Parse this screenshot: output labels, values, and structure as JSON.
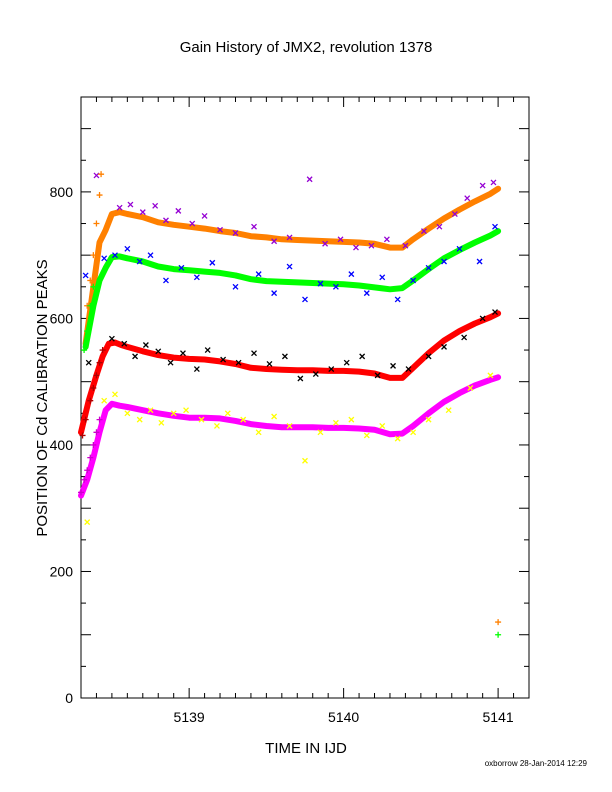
{
  "chart_data": {
    "type": "scatter",
    "title": "Gain History of JMX2, revolution 1378",
    "xlabel": "TIME IN IJD",
    "ylabel": "POSITION OF Cd CALIBRATION PEAKS",
    "xlim": [
      5138.3,
      5141.2
    ],
    "ylim": [
      0,
      950
    ],
    "x_ticks": [
      5139,
      5140,
      5141
    ],
    "x_tick_labels": [
      "5139",
      "5140",
      "5141"
    ],
    "y_ticks": [
      0,
      200,
      400,
      600,
      800
    ],
    "y_tick_labels": [
      "0",
      "200",
      "400",
      "600",
      "800"
    ],
    "grid": false,
    "footer": "oxborrow 28-Jan-2014 12:29",
    "series": [
      {
        "color": "#ff8000",
        "marker": "line",
        "x": [
          5138.33,
          5138.38,
          5138.42,
          5138.46,
          5138.5,
          5138.55,
          5138.6,
          5138.7,
          5138.8,
          5138.9,
          5139.0,
          5139.1,
          5139.2,
          5139.3,
          5139.4,
          5139.5,
          5139.6,
          5139.7,
          5139.8,
          5139.9,
          5140.0,
          5140.1,
          5140.2,
          5140.3,
          5140.38,
          5140.45,
          5140.55,
          5140.65,
          5140.75,
          5140.85,
          5140.95,
          5141.0
        ],
        "y": [
          560,
          650,
          720,
          740,
          765,
          768,
          765,
          760,
          752,
          748,
          745,
          742,
          738,
          735,
          730,
          728,
          725,
          724,
          723,
          722,
          721,
          720,
          718,
          712,
          712,
          725,
          742,
          758,
          772,
          785,
          797,
          805
        ]
      },
      {
        "color": "#00ff00",
        "marker": "line",
        "x": [
          5138.33,
          5138.38,
          5138.42,
          5138.46,
          5138.5,
          5138.55,
          5138.6,
          5138.7,
          5138.8,
          5138.9,
          5139.0,
          5139.1,
          5139.2,
          5139.3,
          5139.4,
          5139.5,
          5139.6,
          5139.7,
          5139.8,
          5139.9,
          5140.0,
          5140.1,
          5140.2,
          5140.3,
          5140.38,
          5140.45,
          5140.55,
          5140.65,
          5140.75,
          5140.85,
          5140.95,
          5141.0
        ],
        "y": [
          555,
          620,
          660,
          680,
          697,
          698,
          695,
          690,
          682,
          678,
          676,
          674,
          672,
          668,
          662,
          659,
          658,
          657,
          656,
          655,
          654,
          652,
          649,
          646,
          648,
          660,
          678,
          695,
          708,
          720,
          731,
          738
        ]
      },
      {
        "color": "#ff0000",
        "marker": "line",
        "x": [
          5138.3,
          5138.35,
          5138.4,
          5138.44,
          5138.48,
          5138.52,
          5138.56,
          5138.6,
          5138.7,
          5138.8,
          5138.9,
          5139.0,
          5139.1,
          5139.2,
          5139.3,
          5139.4,
          5139.5,
          5139.6,
          5139.7,
          5139.8,
          5139.9,
          5140.0,
          5140.1,
          5140.2,
          5140.3,
          5140.38,
          5140.45,
          5140.55,
          5140.65,
          5140.75,
          5140.85,
          5140.95,
          5141.0
        ],
        "y": [
          420,
          470,
          510,
          540,
          560,
          562,
          558,
          555,
          548,
          542,
          538,
          536,
          535,
          532,
          528,
          522,
          520,
          519,
          518,
          518,
          517,
          517,
          516,
          513,
          506,
          506,
          522,
          545,
          565,
          580,
          592,
          602,
          608
        ]
      },
      {
        "color": "#ff00ff",
        "marker": "line",
        "x": [
          5138.3,
          5138.34,
          5138.38,
          5138.42,
          5138.46,
          5138.5,
          5138.55,
          5138.6,
          5138.7,
          5138.8,
          5138.9,
          5139.0,
          5139.1,
          5139.2,
          5139.3,
          5139.4,
          5139.5,
          5139.6,
          5139.7,
          5139.8,
          5139.9,
          5140.0,
          5140.1,
          5140.2,
          5140.3,
          5140.38,
          5140.45,
          5140.55,
          5140.65,
          5140.75,
          5140.85,
          5140.95,
          5141.0
        ],
        "y": [
          320,
          345,
          380,
          420,
          455,
          465,
          462,
          460,
          455,
          450,
          446,
          443,
          443,
          442,
          438,
          433,
          430,
          428,
          428,
          428,
          427,
          427,
          426,
          424,
          417,
          418,
          430,
          450,
          468,
          482,
          494,
          503,
          507
        ]
      },
      {
        "color": "#9400d3",
        "marker": "x",
        "x": [
          5138.4,
          5138.55,
          5138.62,
          5138.7,
          5138.78,
          5138.85,
          5138.93,
          5139.02,
          5139.1,
          5139.2,
          5139.3,
          5139.42,
          5139.55,
          5139.65,
          5139.78,
          5139.88,
          5139.98,
          5140.08,
          5140.18,
          5140.28,
          5140.4,
          5140.52,
          5140.62,
          5140.72,
          5140.8,
          5140.9,
          5140.97
        ],
        "y": [
          826,
          775,
          780,
          768,
          778,
          755,
          770,
          750,
          762,
          740,
          735,
          745,
          722,
          728,
          820,
          718,
          725,
          712,
          715,
          725,
          715,
          738,
          745,
          765,
          790,
          810,
          815
        ]
      },
      {
        "color": "#0000ff",
        "marker": "x",
        "x": [
          5138.33,
          5138.45,
          5138.52,
          5138.6,
          5138.68,
          5138.75,
          5138.85,
          5138.95,
          5139.05,
          5139.15,
          5139.3,
          5139.45,
          5139.55,
          5139.65,
          5139.75,
          5139.85,
          5139.95,
          5140.05,
          5140.15,
          5140.25,
          5140.35,
          5140.45,
          5140.55,
          5140.65,
          5140.75,
          5140.88,
          5140.98
        ],
        "y": [
          668,
          695,
          700,
          710,
          690,
          700,
          660,
          680,
          665,
          688,
          650,
          670,
          640,
          682,
          630,
          655,
          650,
          670,
          640,
          665,
          630,
          660,
          680,
          690,
          710,
          690,
          745
        ]
      },
      {
        "color": "#000000",
        "marker": "x",
        "x": [
          5138.35,
          5138.5,
          5138.58,
          5138.65,
          5138.72,
          5138.8,
          5138.88,
          5138.96,
          5139.05,
          5139.12,
          5139.22,
          5139.32,
          5139.42,
          5139.52,
          5139.62,
          5139.72,
          5139.82,
          5139.92,
          5140.02,
          5140.12,
          5140.22,
          5140.32,
          5140.42,
          5140.55,
          5140.65,
          5140.78,
          5140.9,
          5140.98
        ],
        "y": [
          530,
          568,
          560,
          540,
          558,
          548,
          530,
          545,
          520,
          550,
          535,
          530,
          545,
          528,
          540,
          505,
          512,
          520,
          530,
          540,
          510,
          525,
          520,
          540,
          555,
          570,
          600,
          610
        ]
      },
      {
        "color": "#ffff00",
        "marker": "x",
        "x": [
          5138.34,
          5138.45,
          5138.52,
          5138.6,
          5138.68,
          5138.75,
          5138.82,
          5138.9,
          5138.98,
          5139.08,
          5139.18,
          5139.25,
          5139.35,
          5139.45,
          5139.55,
          5139.65,
          5139.75,
          5139.85,
          5139.95,
          5140.05,
          5140.15,
          5140.25,
          5140.35,
          5140.45,
          5140.55,
          5140.68,
          5140.82,
          5140.95
        ],
        "y": [
          278,
          470,
          480,
          450,
          440,
          455,
          435,
          450,
          455,
          440,
          430,
          450,
          440,
          420,
          445,
          430,
          375,
          420,
          435,
          440,
          415,
          430,
          410,
          420,
          440,
          455,
          490,
          510
        ]
      },
      {
        "color": "#ff8000",
        "marker": "+",
        "x": [
          5138.34,
          5138.36,
          5138.38,
          5138.4,
          5138.42,
          5138.43,
          5141.0
        ],
        "y": [
          620,
          660,
          700,
          750,
          795,
          828,
          120
        ]
      },
      {
        "color": "#00ff00",
        "marker": "+",
        "x": [
          5138.32,
          5138.34,
          5138.36,
          5138.38,
          5141.0
        ],
        "y": [
          550,
          580,
          620,
          650,
          100
        ]
      },
      {
        "color": "#b00000",
        "marker": "+",
        "x": [
          5138.31,
          5138.33,
          5138.36,
          5138.38,
          5138.4,
          5138.42,
          5138.44
        ],
        "y": [
          415,
          440,
          470,
          490,
          510,
          530,
          550
        ]
      },
      {
        "color": "#cc00cc",
        "marker": "+",
        "x": [
          5138.3,
          5138.32,
          5138.34,
          5138.36,
          5138.38,
          5138.4,
          5138.42
        ],
        "y": [
          325,
          345,
          360,
          380,
          400,
          420,
          440
        ]
      }
    ]
  }
}
